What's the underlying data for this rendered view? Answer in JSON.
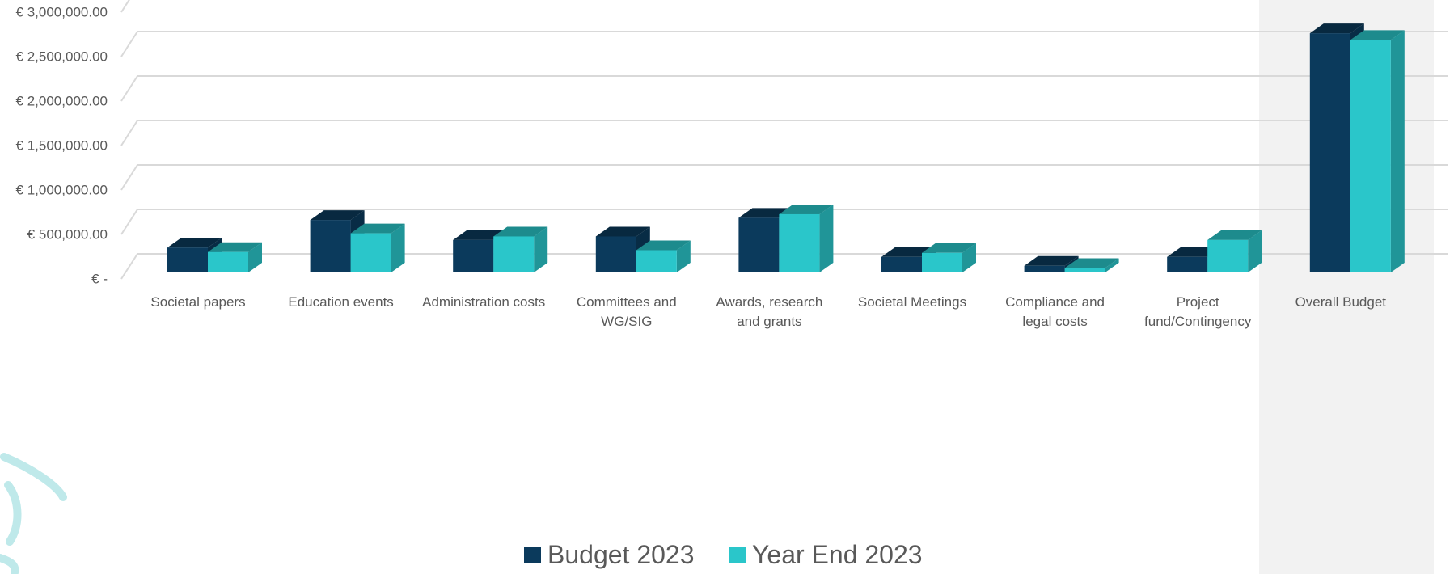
{
  "chart_data": {
    "type": "bar3d",
    "categories": [
      "Societal papers",
      "Education events",
      "Administration costs",
      "Committees and WG/SIG",
      "Awards, research and grants",
      "Societal Meetings",
      "Compliance and legal costs",
      "Project fund/Contingency",
      "Overall Budget"
    ],
    "series": [
      {
        "name": "Budget 2023",
        "color": "#0b3a5c",
        "values": [
          280000,
          590000,
          365000,
          405000,
          615000,
          175000,
          75000,
          175000,
          2690000
        ]
      },
      {
        "name": "Year End 2023",
        "color": "#2ac6ca",
        "values": [
          230000,
          440000,
          405000,
          250000,
          655000,
          220000,
          50000,
          365000,
          2615000
        ]
      }
    ],
    "ylim": [
      0,
      3000000
    ],
    "yticks": [
      {
        "value": 0,
        "label": "€ -"
      },
      {
        "value": 500000,
        "label": "€ 500,000.00"
      },
      {
        "value": 1000000,
        "label": "€ 1,000,000.00"
      },
      {
        "value": 1500000,
        "label": "€ 1,500,000.00"
      },
      {
        "value": 2000000,
        "label": "€ 2,000,000.00"
      },
      {
        "value": 2500000,
        "label": "€ 2,500,000.00"
      },
      {
        "value": 3000000,
        "label": "€ 3,000,000.00"
      }
    ],
    "grid": true,
    "legend": "bottom"
  }
}
